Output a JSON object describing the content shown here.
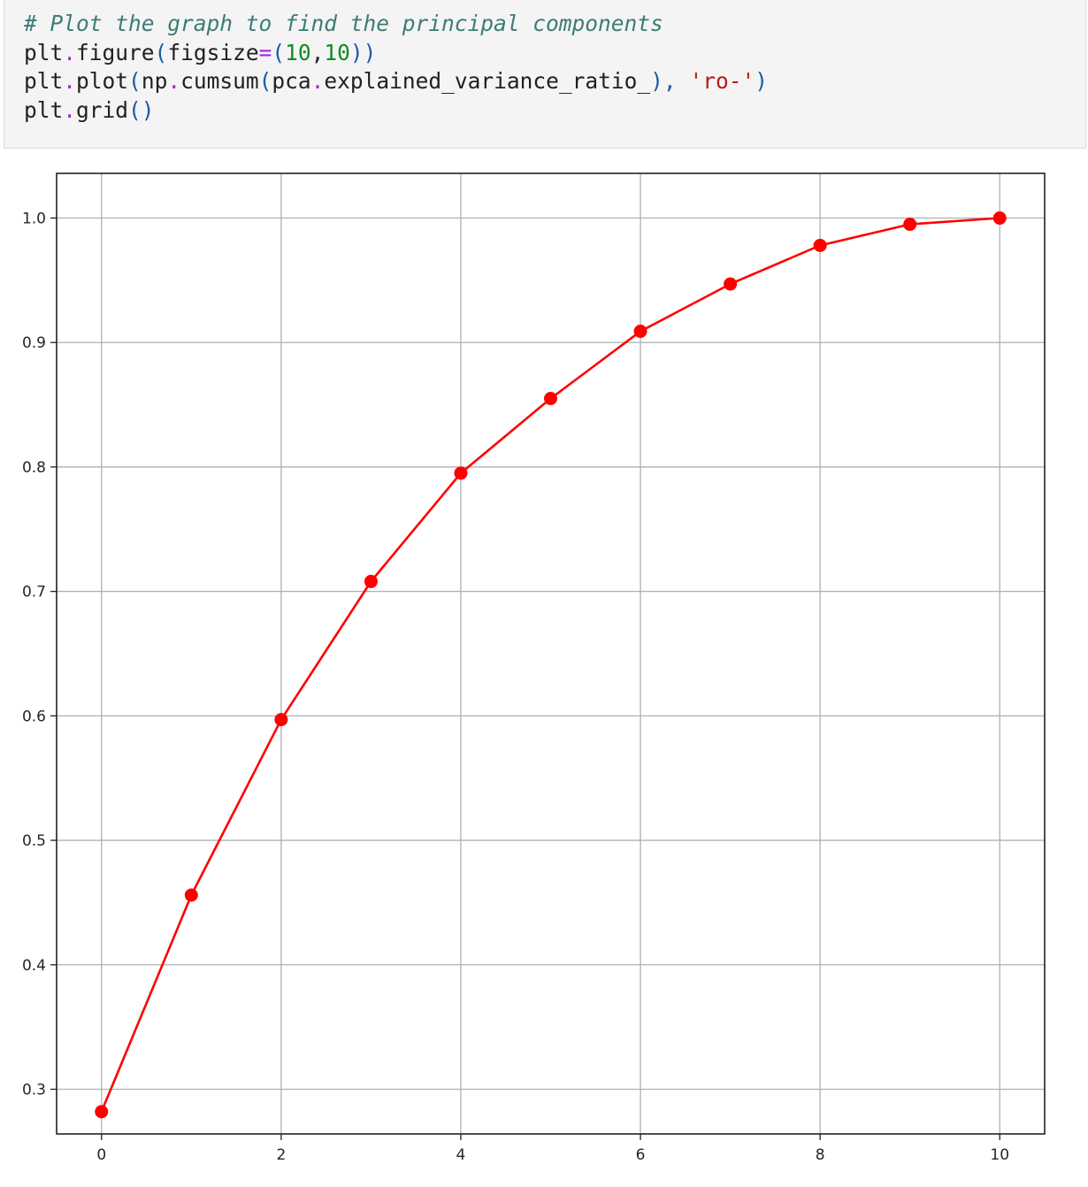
{
  "code_cell": {
    "lines": [
      [
        {
          "t": "# Plot the graph to find the principal components",
          "c": "comment"
        }
      ],
      [
        {
          "t": "plt",
          "c": "name"
        },
        {
          "t": ".",
          "c": "op"
        },
        {
          "t": "figure",
          "c": "name"
        },
        {
          "t": "(",
          "c": "paren"
        },
        {
          "t": "figsize",
          "c": "name"
        },
        {
          "t": "=",
          "c": "op"
        },
        {
          "t": "(",
          "c": "paren"
        },
        {
          "t": "10",
          "c": "num"
        },
        {
          "t": ",",
          "c": "name"
        },
        {
          "t": "10",
          "c": "num"
        },
        {
          "t": "))",
          "c": "paren"
        }
      ],
      [
        {
          "t": "plt",
          "c": "name"
        },
        {
          "t": ".",
          "c": "op"
        },
        {
          "t": "plot",
          "c": "name"
        },
        {
          "t": "(",
          "c": "paren"
        },
        {
          "t": "np",
          "c": "name"
        },
        {
          "t": ".",
          "c": "op"
        },
        {
          "t": "cumsum",
          "c": "name"
        },
        {
          "t": "(",
          "c": "paren"
        },
        {
          "t": "pca",
          "c": "name"
        },
        {
          "t": ".",
          "c": "op"
        },
        {
          "t": "explained_variance_ratio_",
          "c": "name"
        },
        {
          "t": "),",
          "c": "paren"
        },
        {
          "t": " ",
          "c": "name"
        },
        {
          "t": "'ro-'",
          "c": "str"
        },
        {
          "t": ")",
          "c": "paren"
        }
      ],
      [
        {
          "t": "plt",
          "c": "name"
        },
        {
          "t": ".",
          "c": "op"
        },
        {
          "t": "grid",
          "c": "name"
        },
        {
          "t": "()",
          "c": "paren"
        }
      ]
    ],
    "colors": {
      "comment": "#3d7c75",
      "op": "#a02ad8",
      "paren": "#1f58a5",
      "num": "#138a24",
      "str": "#b3201c",
      "name": "#212121"
    }
  },
  "chart_data": {
    "type": "line",
    "x": [
      0,
      1,
      2,
      3,
      4,
      5,
      6,
      7,
      8,
      9,
      10
    ],
    "series": [
      {
        "values": [
          0.282,
          0.456,
          0.597,
          0.708,
          0.795,
          0.855,
          0.909,
          0.947,
          0.978,
          0.995,
          1.0
        ],
        "color": "#ff0000",
        "marker": "circle",
        "linestyle": "solid"
      }
    ],
    "xticks": [
      0,
      2,
      4,
      6,
      8,
      10
    ],
    "xtick_labels": [
      "0",
      "2",
      "4",
      "6",
      "8",
      "10"
    ],
    "yticks": [
      0.3,
      0.4,
      0.5,
      0.6,
      0.7,
      0.8,
      0.9,
      1.0
    ],
    "ytick_labels": [
      "0.3",
      "0.4",
      "0.5",
      "0.6",
      "0.7",
      "0.8",
      "0.9",
      "1.0"
    ],
    "xlim": [
      -0.5,
      10.5
    ],
    "ylim": [
      0.2641,
      1.0359
    ],
    "grid": true,
    "title": "",
    "xlabel": "",
    "ylabel": ""
  }
}
